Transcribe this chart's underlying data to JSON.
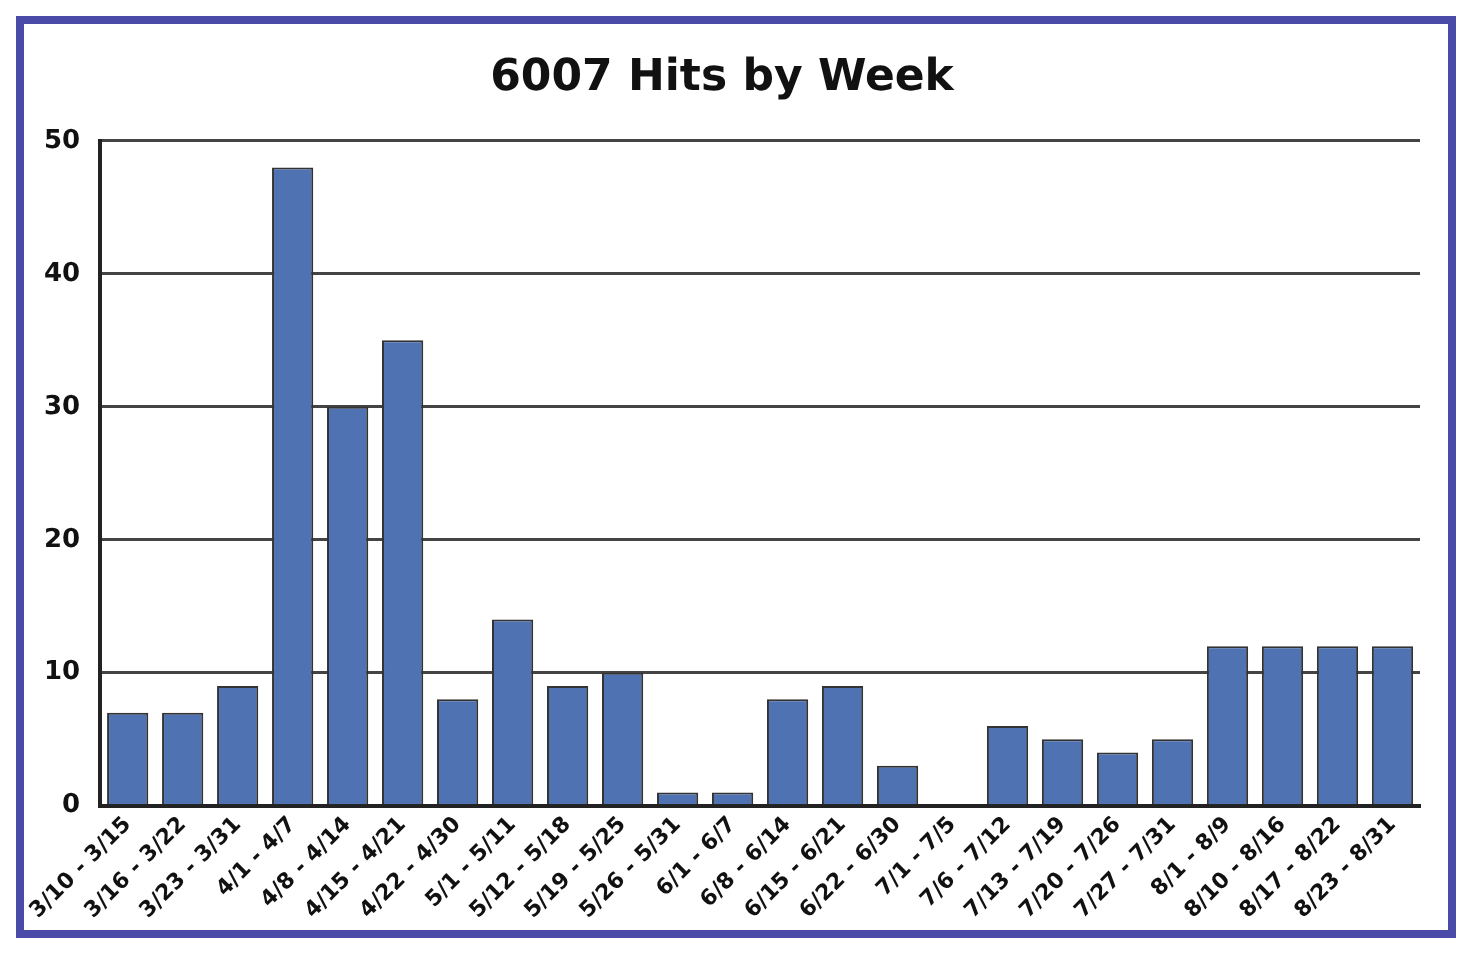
{
  "chart_data": {
    "type": "bar",
    "title": "6007 Hits by Week",
    "categories": [
      "3/10 - 3/15",
      "3/16 - 3/22",
      "3/23 - 3/31",
      "4/1 - 4/7",
      "4/8 - 4/14",
      "4/15 - 4/21",
      "4/22 - 4/30",
      "5/1 - 5/11",
      "5/12 - 5/18",
      "5/19 - 5/25",
      "5/26 - 5/31",
      "6/1 - 6/7",
      "6/8 - 6/14",
      "6/15 - 6/21",
      "6/22 - 6/30",
      "7/1 - 7/5",
      "7/6 - 7/12",
      "7/13 - 7/19",
      "7/20 - 7/26",
      "7/27 - 7/31",
      "8/1 - 8/9",
      "8/10 - 8/16",
      "8/17 - 8/22",
      "8/23 - 8/31"
    ],
    "values": [
      7,
      7,
      9,
      48,
      30,
      35,
      8,
      14,
      9,
      10,
      1,
      1,
      8,
      9,
      3,
      0,
      6,
      5,
      4,
      5,
      12,
      12,
      12,
      12
    ],
    "color": "#4f72b3",
    "ylim": [
      0,
      50
    ],
    "yticks": [
      0,
      10,
      20,
      30,
      40,
      50
    ],
    "grid": "y"
  }
}
